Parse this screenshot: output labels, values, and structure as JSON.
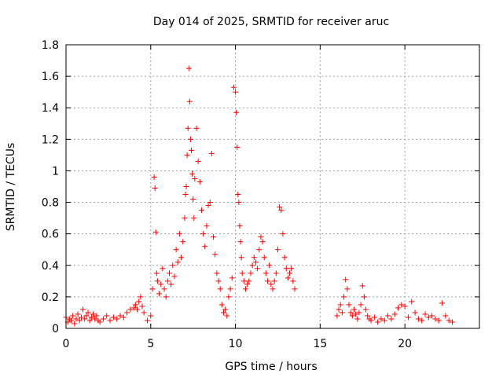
{
  "chart_data": {
    "type": "scatter",
    "title": "Day 014 of 2025, SRMTID for receiver aruc",
    "xlabel": "GPS time / hours",
    "ylabel": "SRMTID / TECUs",
    "xlim": [
      0,
      24.4
    ],
    "ylim": [
      0,
      1.8
    ],
    "xticks": [
      0,
      5,
      10,
      15,
      20
    ],
    "xtick_labels": [
      "0",
      "5",
      "10",
      "15",
      "20"
    ],
    "yticks": [
      0,
      0.2,
      0.4,
      0.6,
      0.8,
      1,
      1.2,
      1.4,
      1.6,
      1.8
    ],
    "ytick_labels": [
      "0",
      "0.2",
      "0.4",
      "0.6",
      "0.8",
      "1",
      "1.2",
      "1.4",
      "1.6",
      "1.8"
    ],
    "grid": true,
    "marker": "plus",
    "color": "#ff0000",
    "series": [
      {
        "name": "SRMTID",
        "x": [
          0.0,
          0.1,
          0.2,
          0.3,
          0.4,
          0.5,
          0.6,
          0.7,
          0.8,
          0.9,
          1.0,
          1.1,
          1.2,
          1.3,
          1.4,
          1.5,
          1.6,
          1.7,
          1.8,
          1.9,
          2.0,
          2.2,
          2.4,
          2.6,
          2.8,
          3.0,
          3.2,
          3.4,
          3.6,
          3.8,
          4.0,
          4.1,
          4.2,
          4.3,
          4.4,
          4.5,
          4.6,
          4.8,
          5.0,
          5.1,
          5.2,
          5.25,
          5.3,
          5.35,
          5.4,
          5.5,
          5.6,
          5.7,
          5.8,
          5.9,
          6.0,
          6.1,
          6.2,
          6.3,
          6.4,
          6.5,
          6.6,
          6.7,
          6.8,
          6.9,
          7.0,
          7.05,
          7.1,
          7.15,
          7.2,
          7.25,
          7.3,
          7.35,
          7.4,
          7.45,
          7.5,
          7.55,
          7.6,
          7.7,
          7.8,
          7.9,
          8.0,
          8.1,
          8.2,
          8.3,
          8.4,
          8.5,
          8.6,
          8.7,
          8.8,
          8.9,
          9.0,
          9.1,
          9.2,
          9.3,
          9.4,
          9.5,
          9.6,
          9.7,
          9.8,
          9.9,
          10.0,
          10.05,
          10.1,
          10.15,
          10.2,
          10.25,
          10.3,
          10.35,
          10.4,
          10.5,
          10.6,
          10.7,
          10.8,
          10.9,
          11.0,
          11.1,
          11.2,
          11.3,
          11.4,
          11.5,
          11.6,
          11.7,
          11.8,
          11.9,
          12.0,
          12.1,
          12.2,
          12.3,
          12.4,
          12.5,
          12.6,
          12.7,
          12.8,
          12.9,
          13.0,
          13.1,
          13.2,
          13.3,
          13.4,
          13.5,
          16.0,
          16.1,
          16.2,
          16.3,
          16.4,
          16.5,
          16.6,
          16.7,
          16.8,
          16.9,
          17.0,
          17.1,
          17.2,
          17.3,
          17.4,
          17.5,
          17.6,
          17.7,
          17.8,
          17.9,
          18.0,
          18.2,
          18.4,
          18.6,
          18.8,
          19.0,
          19.2,
          19.4,
          19.6,
          19.8,
          20.0,
          20.2,
          20.4,
          20.6,
          20.8,
          21.0,
          21.2,
          21.4,
          21.6,
          21.8,
          22.0,
          22.2,
          22.4,
          22.6,
          22.8
        ],
        "y": [
          0.07,
          0.04,
          0.06,
          0.05,
          0.08,
          0.03,
          0.06,
          0.09,
          0.05,
          0.07,
          0.12,
          0.06,
          0.08,
          0.1,
          0.05,
          0.07,
          0.09,
          0.06,
          0.08,
          0.05,
          0.04,
          0.06,
          0.08,
          0.05,
          0.07,
          0.06,
          0.08,
          0.07,
          0.1,
          0.12,
          0.13,
          0.15,
          0.12,
          0.17,
          0.2,
          0.14,
          0.1,
          0.05,
          0.08,
          0.25,
          0.96,
          0.89,
          0.61,
          0.35,
          0.3,
          0.22,
          0.28,
          0.38,
          0.25,
          0.2,
          0.3,
          0.35,
          0.28,
          0.4,
          0.33,
          0.5,
          0.42,
          0.6,
          0.45,
          0.55,
          0.7,
          0.85,
          0.9,
          1.1,
          1.27,
          1.65,
          1.44,
          1.2,
          1.13,
          0.98,
          0.82,
          0.7,
          0.95,
          1.27,
          1.06,
          0.93,
          0.75,
          0.6,
          0.52,
          0.65,
          0.78,
          0.8,
          1.11,
          0.58,
          0.47,
          0.35,
          0.3,
          0.25,
          0.15,
          0.1,
          0.12,
          0.08,
          0.2,
          0.25,
          0.32,
          1.53,
          1.5,
          1.37,
          1.15,
          0.85,
          0.8,
          0.65,
          0.55,
          0.45,
          0.35,
          0.3,
          0.25,
          0.28,
          0.3,
          0.35,
          0.4,
          0.45,
          0.42,
          0.38,
          0.5,
          0.58,
          0.55,
          0.45,
          0.35,
          0.3,
          0.4,
          0.28,
          0.25,
          0.3,
          0.35,
          0.5,
          0.77,
          0.75,
          0.6,
          0.45,
          0.38,
          0.32,
          0.35,
          0.38,
          0.3,
          0.25,
          0.08,
          0.12,
          0.15,
          0.1,
          0.2,
          0.31,
          0.25,
          0.15,
          0.1,
          0.08,
          0.12,
          0.09,
          0.06,
          0.1,
          0.15,
          0.27,
          0.2,
          0.12,
          0.08,
          0.06,
          0.05,
          0.07,
          0.04,
          0.06,
          0.05,
          0.08,
          0.06,
          0.09,
          0.13,
          0.15,
          0.14,
          0.07,
          0.17,
          0.1,
          0.06,
          0.05,
          0.09,
          0.07,
          0.08,
          0.06,
          0.05,
          0.16,
          0.08,
          0.05,
          0.04
        ]
      }
    ]
  }
}
